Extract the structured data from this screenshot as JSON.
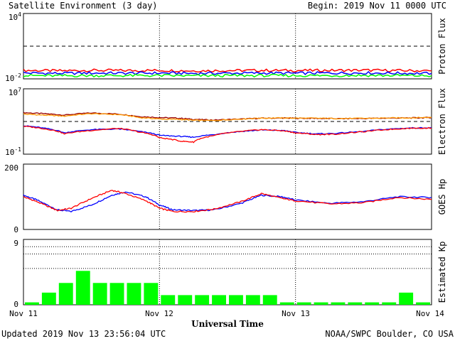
{
  "header": {
    "title": "Satellite Environment (3 day)",
    "begin": "Begin:  2019 Nov 11 0000 UTC"
  },
  "footer": {
    "updated": "Updated 2019 Nov 13 23:56:04 UTC",
    "source": "NOAA/SWPC Boulder, CO USA",
    "xlabel": "Universal Time"
  },
  "colors": {
    "red": "#ff0000",
    "blue": "#0000ff",
    "green": "#00ff00",
    "orange": "#ff9900",
    "darkred": "#990000"
  },
  "chart_data": [
    {
      "type": "line",
      "panel": "proton",
      "ylabel": "Proton Flux",
      "yscale": "log",
      "ylim": [
        0.01,
        10000
      ],
      "tick_labels": {
        "top": "10^4",
        "bottom": "10^-2"
      },
      "threshold": 10,
      "x_days": [
        0,
        0.25,
        0.5,
        0.75,
        1,
        1.25,
        1.5,
        1.75,
        2,
        2.25,
        2.5,
        2.75,
        3
      ],
      "series": [
        {
          "color": "red",
          "values": [
            0.06,
            0.055,
            0.06,
            0.058,
            0.06,
            0.055,
            0.058,
            0.06,
            0.058,
            0.06,
            0.062,
            0.058,
            0.055
          ]
        },
        {
          "color": "blue",
          "values": [
            0.035,
            0.032,
            0.034,
            0.033,
            0.034,
            0.032,
            0.033,
            0.034,
            0.033,
            0.034,
            0.035,
            0.033,
            0.032
          ]
        },
        {
          "color": "green",
          "values": [
            0.02,
            0.019,
            0.02,
            0.02,
            0.02,
            0.019,
            0.02,
            0.02,
            0.02,
            0.02,
            0.021,
            0.02,
            0.019
          ]
        }
      ]
    },
    {
      "type": "line",
      "panel": "electron",
      "ylabel": "Electron Flux",
      "yscale": "log",
      "ylim": [
        0.1,
        10000000
      ],
      "tick_labels": {
        "top": "10^7",
        "bottom": "10^-1"
      },
      "threshold": 1000,
      "x_days": [
        0,
        0.15,
        0.3,
        0.5,
        0.7,
        0.85,
        1,
        1.15,
        1.25,
        1.4,
        1.6,
        1.75,
        1.9,
        2,
        2.15,
        2.3,
        2.5,
        2.7,
        2.85,
        3
      ],
      "series": [
        {
          "color": "darkred",
          "values": [
            12000,
            9000,
            6000,
            11000,
            8000,
            4000,
            3000,
            2500,
            1800,
            1500,
            2000,
            2500,
            2600,
            2500,
            2400,
            2200,
            2300,
            2600,
            2700,
            3000
          ]
        },
        {
          "color": "orange",
          "values": [
            8000,
            6000,
            4500,
            9000,
            7000,
            3000,
            2000,
            1800,
            1400,
            1300,
            2000,
            2600,
            2700,
            2600,
            2500,
            2300,
            2400,
            2700,
            2800,
            3200
          ]
        },
        {
          "color": "blue",
          "values": [
            300,
            150,
            40,
            100,
            120,
            60,
            20,
            15,
            12,
            25,
            60,
            90,
            80,
            45,
            30,
            35,
            60,
            120,
            160,
            170
          ]
        },
        {
          "color": "red",
          "values": [
            260,
            130,
            30,
            80,
            140,
            50,
            10,
            4,
            3,
            18,
            60,
            100,
            75,
            40,
            25,
            28,
            55,
            110,
            150,
            160
          ]
        }
      ]
    },
    {
      "type": "line",
      "panel": "goes_hp",
      "ylabel": "GOES Hp",
      "ylim": [
        0,
        200
      ],
      "tick_labels": {
        "top": "200",
        "bottom": "0"
      },
      "x_days": [
        0,
        0.1,
        0.25,
        0.35,
        0.5,
        0.65,
        0.75,
        0.9,
        1,
        1.1,
        1.25,
        1.4,
        1.6,
        1.75,
        1.9,
        2,
        2.25,
        2.5,
        2.75,
        3
      ],
      "series": [
        {
          "color": "blue",
          "values": [
            105,
            90,
            60,
            55,
            75,
            105,
            115,
            100,
            75,
            60,
            58,
            60,
            80,
            105,
            100,
            90,
            80,
            85,
            100,
            98
          ]
        },
        {
          "color": "red",
          "values": [
            100,
            85,
            58,
            65,
            95,
            120,
            110,
            88,
            65,
            55,
            55,
            62,
            85,
            110,
            95,
            88,
            78,
            82,
            98,
            92
          ]
        }
      ]
    },
    {
      "type": "bar",
      "panel": "estimated_kp",
      "ylabel": "Estimated Kp",
      "ylim": [
        0,
        9
      ],
      "tick_labels": {
        "top": "9",
        "bottom": "0"
      },
      "gridlines": [
        5,
        7,
        8,
        9
      ],
      "bin_hours": 3,
      "values": [
        0.33,
        1.67,
        3,
        4.67,
        3,
        3,
        3,
        3,
        1.33,
        1.33,
        1.33,
        1.33,
        1.33,
        1.33,
        1.33,
        0.33,
        0.33,
        0.33,
        0.33,
        0.33,
        0.33,
        0.33,
        1.67,
        0.33
      ]
    }
  ],
  "xaxis": {
    "tick_labels": [
      "Nov 11",
      "Nov 12",
      "Nov 13",
      "Nov 14"
    ]
  }
}
